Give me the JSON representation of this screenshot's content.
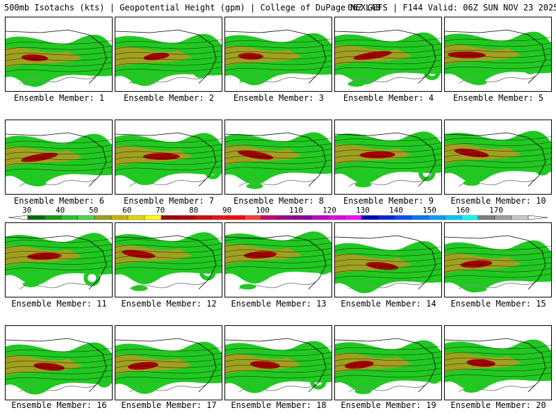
{
  "header": {
    "left": "500mb Isotachs (kts) | Geopotential Height (gpm) | College of DuPage NEXLAB",
    "right": "06Z GEFS | F144 Valid: 06Z SUN NOV 23 2025"
  },
  "members": [
    "Ensemble Member: 1",
    "Ensemble Member: 2",
    "Ensemble Member: 3",
    "Ensemble Member: 4",
    "Ensemble Member: 5",
    "Ensemble Member: 6",
    "Ensemble Member: 7",
    "Ensemble Member: 8",
    "Ensemble Member: 9",
    "Ensemble Member: 10",
    "Ensemble Member: 11",
    "Ensemble Member: 12",
    "Ensemble Member: 13",
    "Ensemble Member: 14",
    "Ensemble Member: 15",
    "Ensemble Member: 16",
    "Ensemble Member: 17",
    "Ensemble Member: 18",
    "Ensemble Member: 19",
    "Ensemble Member: 20"
  ],
  "colorbar": {
    "labels": [
      "30",
      "40",
      "50",
      "60",
      "70",
      "80",
      "90",
      "100",
      "110",
      "120",
      "130",
      "140",
      "150",
      "160",
      "170"
    ],
    "colors": [
      "#0a6e0a",
      "#12a012",
      "#22c822",
      "#4ed84e",
      "#a0a020",
      "#c8b400",
      "#e0d800",
      "#ffff00",
      "#a00000",
      "#b40000",
      "#d01010",
      "#e81818",
      "#ff0000",
      "#ff3c3c",
      "#c80078",
      "#a00090",
      "#8c00a0",
      "#c000c0",
      "#e000e0",
      "#ff00ff",
      "#0000c8",
      "#0028e0",
      "#0050ff",
      "#0078ff",
      "#00a0ff",
      "#00c8ff",
      "#00ffff",
      "#808080",
      "#a0a0a0",
      "#c8c8c8"
    ]
  }
}
